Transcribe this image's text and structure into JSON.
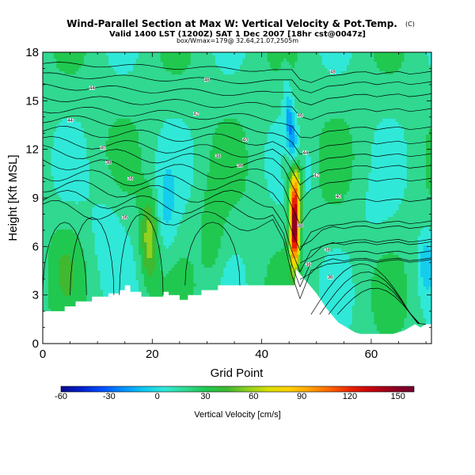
{
  "chart_data": {
    "type": "heatmap",
    "title": "Wind-Parallel Section at Max W: Vertical Velocity & Pot.Temp.",
    "title_mark": "(C)",
    "subtitle": "Valid 1400 LST (1200Z) SAT 1 Dec 2007 [18hr cst@0047z]",
    "subtitle2": "box/Wmax=179@ 32.64,21.07,2505m",
    "xlabel": "Grid Point",
    "ylabel": "Height [Kft MSL]",
    "xlim": [
      0,
      71
    ],
    "ylim": [
      0,
      18
    ],
    "x_ticks": [
      0,
      20,
      40,
      60
    ],
    "y_ticks": [
      0,
      3,
      6,
      9,
      12,
      15,
      18
    ],
    "colorbar": {
      "label": "Vertical Velocity [cm/s]",
      "range": [
        -60,
        160
      ],
      "ticks": [
        -60,
        -30,
        0,
        30,
        60,
        90,
        120,
        150
      ],
      "colors": [
        "#0a0a8c",
        "#0020d0",
        "#0050ff",
        "#0090ff",
        "#10c8f0",
        "#30e8d8",
        "#30d890",
        "#20c850",
        "#40b830",
        "#90d020",
        "#d8e000",
        "#ffd000",
        "#ffa000",
        "#ff6000",
        "#e82000",
        "#c00010",
        "#900020",
        "#700030"
      ]
    },
    "contour_labels": [
      "48",
      "46",
      "44",
      "42",
      "40",
      "38",
      "36"
    ]
  }
}
